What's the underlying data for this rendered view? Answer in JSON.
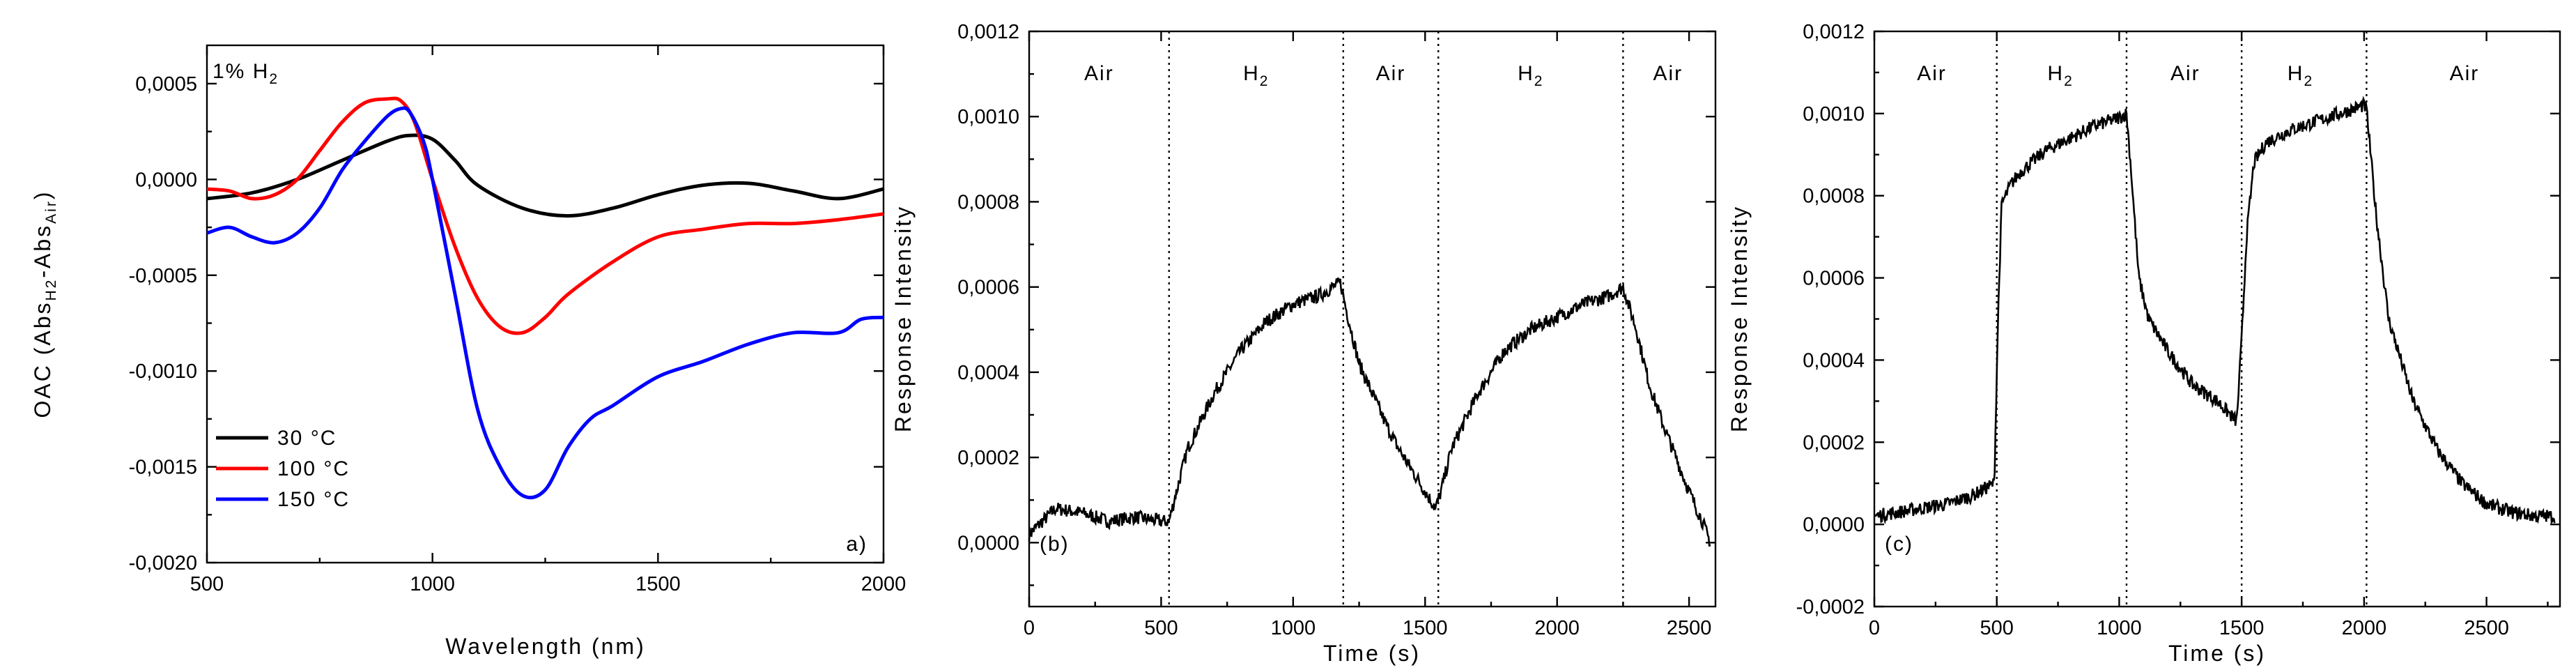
{
  "charts": [
    {
      "id": "a",
      "type": "line",
      "panel_label": "a)",
      "annotation": {
        "main": "1% H",
        "sub": "2"
      },
      "xlabel": "Wavelength (nm)",
      "ylabel": {
        "main": "OAC (Abs",
        "sub1": "H2",
        "mid": "-Abs",
        "sub2": "Air",
        "end": ")"
      },
      "xlim": [
        500,
        2000
      ],
      "ylim": [
        -0.002,
        0.0007
      ],
      "xticks": [
        500,
        1000,
        1500,
        2000
      ],
      "yticks": [
        -0.002,
        -0.0015,
        -0.001,
        -0.0005,
        0.0,
        0.0005
      ],
      "xticklabels": [
        "500",
        "1000",
        "1500",
        "2000"
      ],
      "yticklabels": [
        "-0,0020",
        "-0,0015",
        "-0,0010",
        "-0,0005",
        "0,0000",
        "0,0005"
      ],
      "legend": {
        "position": "bottom-left",
        "entries": [
          "30 °C",
          "100 °C",
          "150 °C"
        ]
      },
      "series": [
        {
          "name": "30 °C",
          "color": "#000000",
          "x": [
            500,
            600,
            700,
            800,
            900,
            950,
            1000,
            1050,
            1100,
            1200,
            1300,
            1400,
            1500,
            1600,
            1700,
            1800,
            1900,
            2000
          ],
          "y": [
            -0.0001,
            -7e-05,
            0.0,
            0.0001,
            0.0002,
            0.00023,
            0.00021,
            0.0001,
            -3e-05,
            -0.00015,
            -0.00019,
            -0.00015,
            -8e-05,
            -3e-05,
            -2e-05,
            -6e-05,
            -0.0001,
            -5e-05
          ]
        },
        {
          "name": "100 °C",
          "color": "#ff0000",
          "x": [
            500,
            550,
            600,
            650,
            700,
            750,
            800,
            850,
            900,
            930,
            960,
            1000,
            1050,
            1100,
            1150,
            1200,
            1250,
            1300,
            1400,
            1500,
            1600,
            1700,
            1800,
            1900,
            2000
          ],
          "y": [
            -5e-05,
            -6e-05,
            -0.0001,
            -8e-05,
            0.0,
            0.00015,
            0.0003,
            0.0004,
            0.00042,
            0.00041,
            0.0003,
            0.0,
            -0.00035,
            -0.00062,
            -0.00077,
            -0.0008,
            -0.00072,
            -0.0006,
            -0.00043,
            -0.0003,
            -0.00026,
            -0.00023,
            -0.00023,
            -0.00021,
            -0.00018
          ]
        },
        {
          "name": "150 °C",
          "color": "#0000ff",
          "x": [
            500,
            550,
            600,
            650,
            700,
            750,
            800,
            850,
            900,
            930,
            950,
            980,
            1000,
            1050,
            1100,
            1150,
            1200,
            1250,
            1300,
            1350,
            1400,
            1500,
            1600,
            1700,
            1800,
            1900,
            1950,
            2000
          ],
          "y": [
            -0.00028,
            -0.00025,
            -0.0003,
            -0.00033,
            -0.00028,
            -0.00015,
            5e-05,
            0.0002,
            0.00033,
            0.00037,
            0.00035,
            0.0002,
            0.0,
            -0.0006,
            -0.0012,
            -0.0015,
            -0.00165,
            -0.00162,
            -0.0014,
            -0.00125,
            -0.00118,
            -0.00103,
            -0.00095,
            -0.00086,
            -0.0008,
            -0.0008,
            -0.00073,
            -0.00072
          ]
        }
      ]
    },
    {
      "id": "b",
      "type": "line",
      "panel_label": "(b)",
      "xlabel": "Time (s)",
      "ylabel": "Response Intensity",
      "xlim": [
        0,
        2600
      ],
      "ylim": [
        -0.00015,
        0.0012
      ],
      "xticks": [
        0,
        500,
        1000,
        1500,
        2000,
        2500
      ],
      "yticks": [
        0.0,
        0.0002,
        0.0004,
        0.0006,
        0.0008,
        0.001,
        0.0012
      ],
      "xticklabels": [
        "0",
        "500",
        "1000",
        "1500",
        "2000",
        "2500"
      ],
      "yticklabels": [
        "0,0000",
        "0,0002",
        "0,0004",
        "0,0006",
        "0,0008",
        "0,0010",
        "0,0012"
      ],
      "dividers": [
        530,
        1190,
        1550,
        2250
      ],
      "regions": [
        {
          "label": "Air",
          "sub": "",
          "x": 265
        },
        {
          "label": "H",
          "sub": "2",
          "x": 860
        },
        {
          "label": "Air",
          "sub": "",
          "x": 1370
        },
        {
          "label": "H",
          "sub": "2",
          "x": 1900
        },
        {
          "label": "Air",
          "sub": "",
          "x": 2420
        }
      ],
      "series": [
        {
          "name": "",
          "color": "#000000",
          "x": [
            0,
            100,
            200,
            300,
            400,
            500,
            530,
            550,
            600,
            700,
            800,
            900,
            1000,
            1100,
            1150,
            1180,
            1200,
            1250,
            1300,
            1350,
            1400,
            1450,
            1500,
            1540,
            1560,
            1600,
            1700,
            1800,
            1900,
            2000,
            2100,
            2200,
            2250,
            2300,
            2350,
            2400,
            2450,
            2500,
            2550,
            2580
          ],
          "y": [
            2e-05,
            8e-05,
            7e-05,
            5e-05,
            6e-05,
            5e-05,
            5e-05,
            0.0001,
            0.00022,
            0.00035,
            0.00045,
            0.00052,
            0.00056,
            0.00058,
            0.0006,
            0.00061,
            0.00055,
            0.00042,
            0.00035,
            0.00028,
            0.00022,
            0.00017,
            0.00012,
            8e-05,
            0.00012,
            0.00022,
            0.00035,
            0.00045,
            0.0005,
            0.00053,
            0.00056,
            0.00058,
            0.0006,
            0.0005,
            0.00037,
            0.00028,
            0.0002,
            0.00012,
            5e-05,
            0.0
          ]
        }
      ]
    },
    {
      "id": "c",
      "type": "line",
      "panel_label": "(c)",
      "xlabel": "Time (s)",
      "ylabel": "Response Intensity",
      "xlim": [
        0,
        2800
      ],
      "ylim": [
        -0.0002,
        0.0012
      ],
      "xticks": [
        0,
        500,
        1000,
        1500,
        2000,
        2500
      ],
      "yticks": [
        -0.0002,
        0.0,
        0.0002,
        0.0004,
        0.0006,
        0.0008,
        0.001,
        0.0012
      ],
      "xticklabels": [
        "0",
        "500",
        "1000",
        "1500",
        "2000",
        "2500"
      ],
      "yticklabels": [
        "-0,0002",
        "0,0000",
        "0,0002",
        "0,0004",
        "0,0006",
        "0,0008",
        "0,0010",
        "0,0012"
      ],
      "dividers": [
        500,
        1030,
        1500,
        2010
      ],
      "regions": [
        {
          "label": "Air",
          "sub": "",
          "x": 235
        },
        {
          "label": "H",
          "sub": "2",
          "x": 760
        },
        {
          "label": "Air",
          "sub": "",
          "x": 1270
        },
        {
          "label": "H",
          "sub": "2",
          "x": 1740
        },
        {
          "label": "Air",
          "sub": "",
          "x": 2410
        }
      ],
      "series": [
        {
          "name": "",
          "color": "#000000",
          "x": [
            0,
            100,
            200,
            300,
            400,
            490,
            505,
            520,
            560,
            600,
            700,
            800,
            900,
            1000,
            1030,
            1050,
            1080,
            1120,
            1200,
            1300,
            1400,
            1480,
            1500,
            1520,
            1550,
            1600,
            1700,
            1800,
            1900,
            2000,
            2010,
            2050,
            2100,
            2200,
            2300,
            2400,
            2500,
            2600,
            2700,
            2780
          ],
          "y": [
            2e-05,
            3e-05,
            4e-05,
            5e-05,
            7e-05,
            0.0001,
            0.0005,
            0.00078,
            0.00083,
            0.00086,
            0.00091,
            0.00094,
            0.00097,
            0.00099,
            0.001,
            0.00085,
            0.0006,
            0.0005,
            0.00042,
            0.00034,
            0.0003,
            0.00025,
            0.00045,
            0.0007,
            0.00088,
            0.00093,
            0.00096,
            0.00098,
            0.001,
            0.00102,
            0.00101,
            0.00075,
            0.0005,
            0.0003,
            0.00018,
            0.0001,
            5e-05,
            3e-05,
            2e-05,
            2e-05
          ]
        }
      ]
    }
  ]
}
